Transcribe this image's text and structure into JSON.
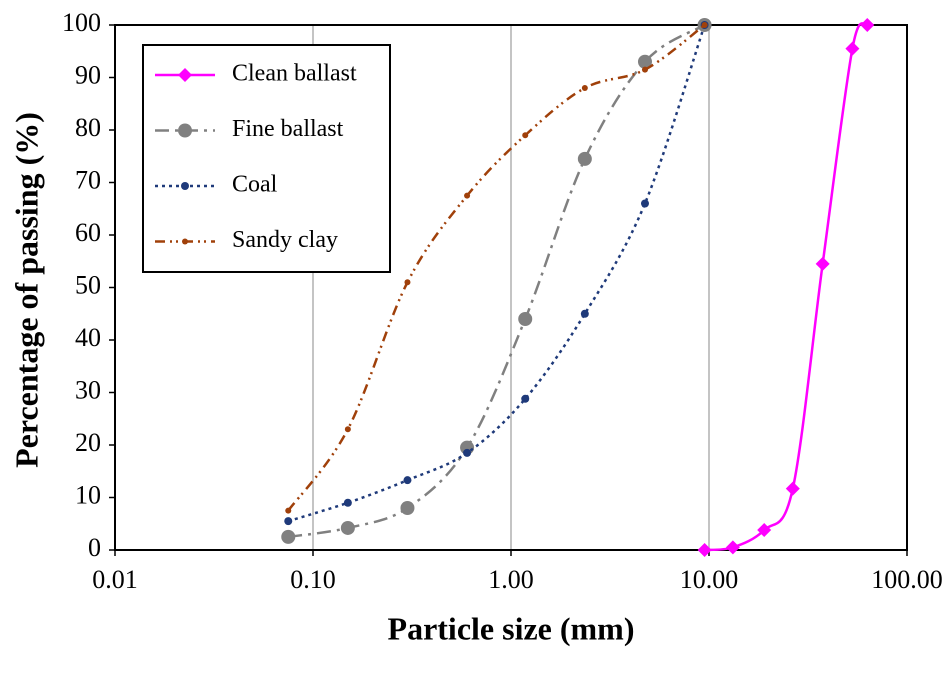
{
  "chart_data": {
    "type": "line",
    "x_label": "Particle size (mm)",
    "y_label": "Percentage of passing (%)",
    "xscale": "log",
    "xlim": [
      0.01,
      100
    ],
    "xticks": [
      {
        "value": 0.01,
        "label": "0.01"
      },
      {
        "value": 0.1,
        "label": "0.10"
      },
      {
        "value": 1,
        "label": "1.00"
      },
      {
        "value": 10,
        "label": "10.00"
      },
      {
        "value": 100,
        "label": "100.00"
      }
    ],
    "ylim": [
      0,
      100
    ],
    "yticks": [
      0,
      10,
      20,
      30,
      40,
      50,
      60,
      70,
      80,
      90,
      100
    ],
    "grid": "x",
    "legend": "upper-left",
    "series": [
      {
        "name": "Clean ballast",
        "color": "#ff00ff",
        "line_style": "solid",
        "marker": "diamond",
        "x": [
          9.5,
          13.2,
          19,
          26.5,
          37.5,
          53,
          63
        ],
        "values": [
          0,
          0.5,
          3.8,
          11.7,
          54.5,
          95.5,
          100
        ]
      },
      {
        "name": "Fine ballast",
        "color": "#808080",
        "line_style": "dash-dot",
        "marker": "large-circle",
        "x": [
          0.075,
          0.15,
          0.3,
          0.6,
          1.18,
          2.36,
          4.75,
          9.5
        ],
        "values": [
          2.5,
          4.2,
          8,
          19.5,
          44,
          74.5,
          93,
          100
        ]
      },
      {
        "name": "Coal",
        "color": "#1f3a7a",
        "line_style": "dotted",
        "marker": "circle",
        "x": [
          0.075,
          0.15,
          0.3,
          0.6,
          1.18,
          2.36,
          4.75,
          9.5
        ],
        "values": [
          5.5,
          9,
          13.3,
          18.5,
          28.8,
          45,
          66,
          100
        ]
      },
      {
        "name": "Sandy clay",
        "color": "#a0400a",
        "line_style": "dash-dot-dot",
        "marker": "small-circle",
        "x": [
          0.075,
          0.15,
          0.3,
          0.6,
          1.18,
          2.36,
          4.75,
          9.5
        ],
        "values": [
          7.5,
          23,
          51,
          67.5,
          79,
          88,
          91.5,
          100
        ]
      }
    ]
  }
}
